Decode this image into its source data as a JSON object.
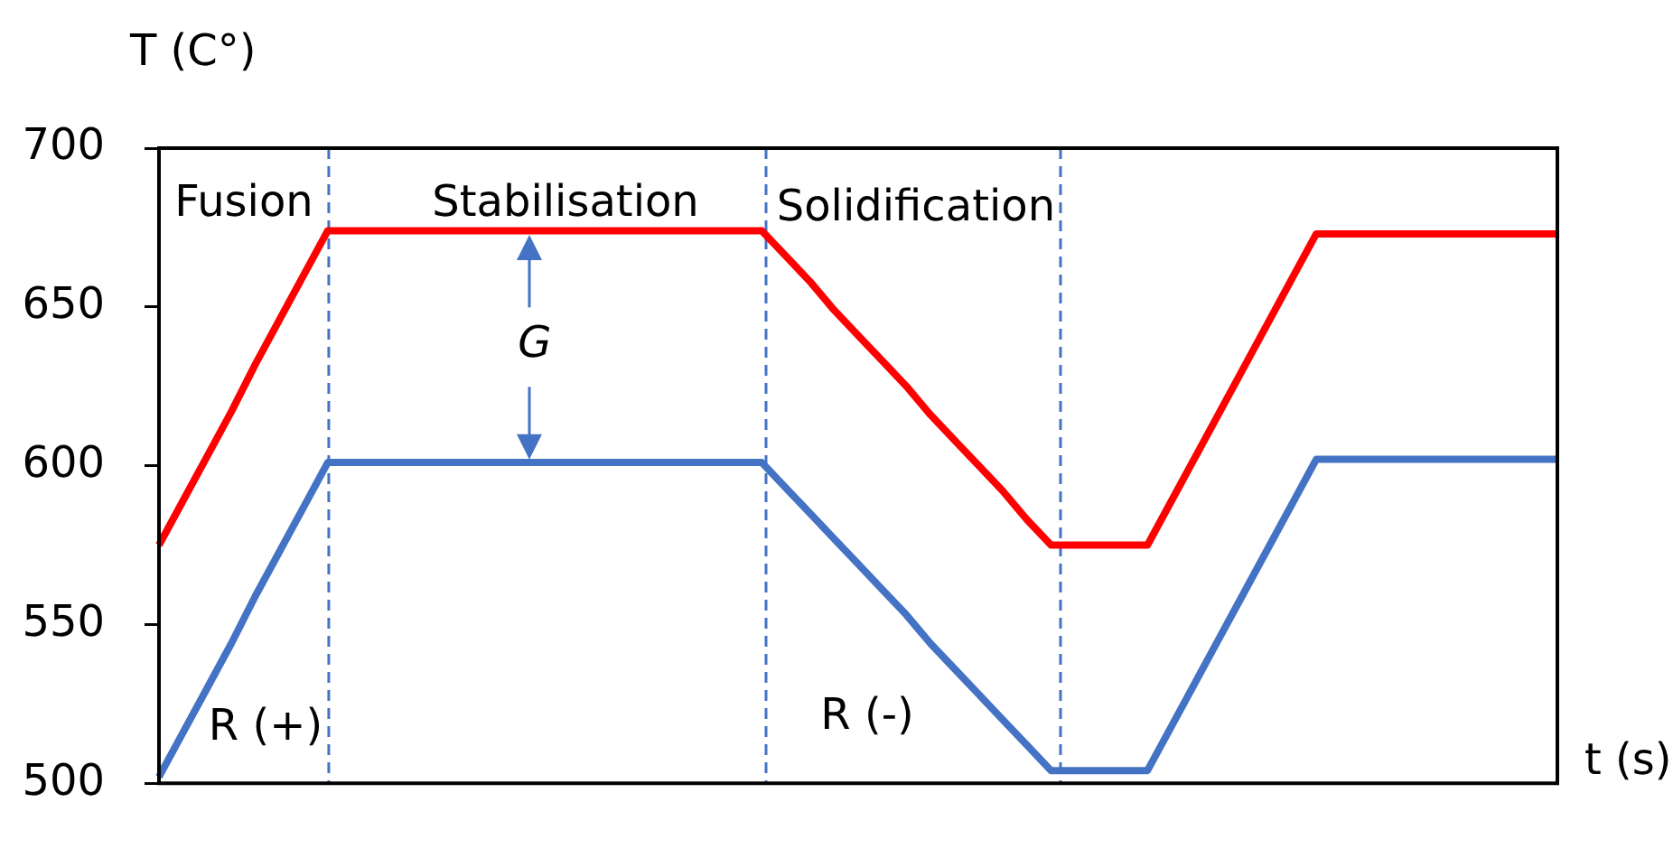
{
  "chart_data": {
    "type": "line",
    "xlabel": "t (s)",
    "ylabel": "T (C°)",
    "categories": [
      null,
      null,
      null,
      null,
      null,
      null,
      null,
      null,
      null,
      null,
      null,
      null,
      null,
      null,
      null,
      null,
      null,
      null,
      null,
      null,
      null,
      null,
      null,
      null,
      null,
      null,
      null,
      null,
      null,
      null,
      null,
      null,
      null,
      null,
      null,
      null,
      null,
      null,
      null,
      null,
      null,
      null,
      null,
      null,
      null,
      null,
      null,
      null,
      null,
      null,
      null,
      null,
      null,
      null,
      null,
      null,
      null,
      null,
      null
    ],
    "series": [
      {
        "color": "#ff0000",
        "values": [
          575,
          589,
          603,
          617,
          632,
          646,
          660,
          674,
          674,
          674,
          674,
          674,
          674,
          674,
          674,
          674,
          674,
          674,
          674,
          674,
          674,
          674,
          674,
          674,
          674,
          674,
          666,
          658,
          649,
          641,
          633,
          625,
          616,
          608,
          600,
          592,
          583,
          575,
          575,
          575,
          575,
          575,
          589,
          603,
          617,
          631,
          645,
          659,
          673,
          673,
          673,
          673,
          673,
          673,
          673,
          673,
          673,
          673,
          673
        ]
      },
      {
        "color": "#4472c4",
        "values": [
          502,
          516,
          530,
          544,
          559,
          573,
          587,
          601,
          601,
          601,
          601,
          601,
          601,
          601,
          601,
          601,
          601,
          601,
          601,
          601,
          601,
          601,
          601,
          601,
          601,
          601,
          593,
          585,
          577,
          569,
          561,
          553,
          544,
          536,
          528,
          520,
          512,
          504,
          504,
          504,
          504,
          504,
          518,
          532,
          546,
          560,
          574,
          588,
          602,
          602,
          602,
          602,
          602,
          602,
          602,
          602,
          602,
          602,
          602
        ]
      }
    ],
    "ylim": [
      500,
      700
    ],
    "yticks": [
      500,
      550,
      600,
      650,
      700
    ],
    "grid": false,
    "legend": false,
    "marker": "none",
    "line_style": "solid",
    "tick_labels": "y",
    "annotations": [
      "Fusion",
      "Stabilisation",
      "Solidification",
      "R (+)",
      "R (-)",
      "G"
    ]
  }
}
